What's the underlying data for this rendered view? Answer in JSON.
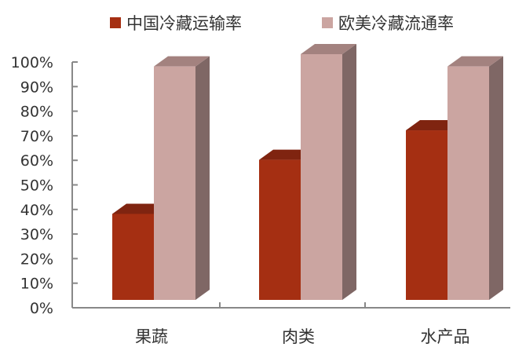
{
  "chart_data": {
    "type": "bar",
    "style": "3d-clustered-column",
    "categories": [
      "果蔬",
      "肉类",
      "水产品"
    ],
    "series": [
      {
        "name": "中国冷藏运输率",
        "values": [
          35,
          57,
          69
        ],
        "color": "#a52f12",
        "top_color": "#7f2410",
        "side_color": "#7f2410"
      },
      {
        "name": "欧美冷藏流通率",
        "values": [
          95,
          100,
          95
        ],
        "color": "#cba5a1",
        "top_color": "#a3827f",
        "side_color": "#7f6765"
      }
    ],
    "yticks": [
      "0%",
      "10%",
      "20%",
      "30%",
      "40%",
      "50%",
      "60%",
      "70%",
      "80%",
      "90%",
      "100%"
    ],
    "ylim": [
      0,
      100
    ],
    "legend": "top",
    "grid": false
  }
}
